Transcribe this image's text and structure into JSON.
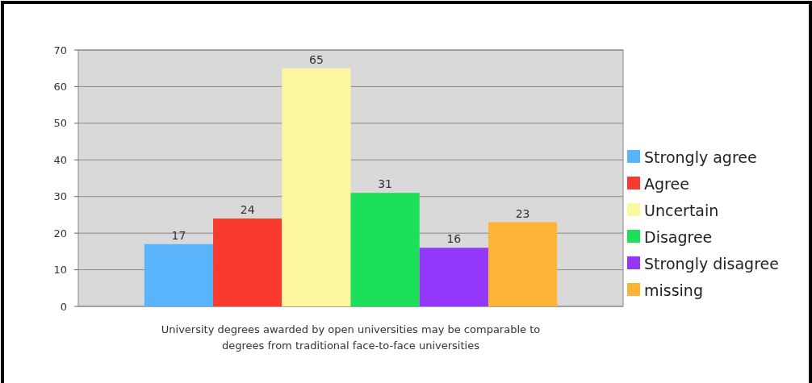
{
  "chart_data": {
    "type": "bar",
    "categories": [
      null
    ],
    "xlabel": "University degrees awarded by open universities may be comparable to degrees from traditional face-to-face universities",
    "series": [
      {
        "name": "Strongly agree",
        "color": "#5ab4fb",
        "values": [
          17
        ]
      },
      {
        "name": "Agree",
        "color": "#f93a2e",
        "values": [
          24
        ]
      },
      {
        "name": "Uncertain",
        "color": "#fdf7a0",
        "values": [
          65
        ]
      },
      {
        "name": "Disagree",
        "color": "#1de05a",
        "values": [
          31
        ]
      },
      {
        "name": "Strongly disagree",
        "color": "#9337fb",
        "values": [
          16
        ]
      },
      {
        "name": "missing",
        "color": "#fdb336",
        "values": [
          23
        ]
      }
    ],
    "ylim": [
      0,
      70
    ],
    "yticks": [
      0,
      10,
      20,
      30,
      40,
      50,
      60,
      70
    ],
    "grid": "y",
    "legend": "right",
    "data_labels": true
  }
}
